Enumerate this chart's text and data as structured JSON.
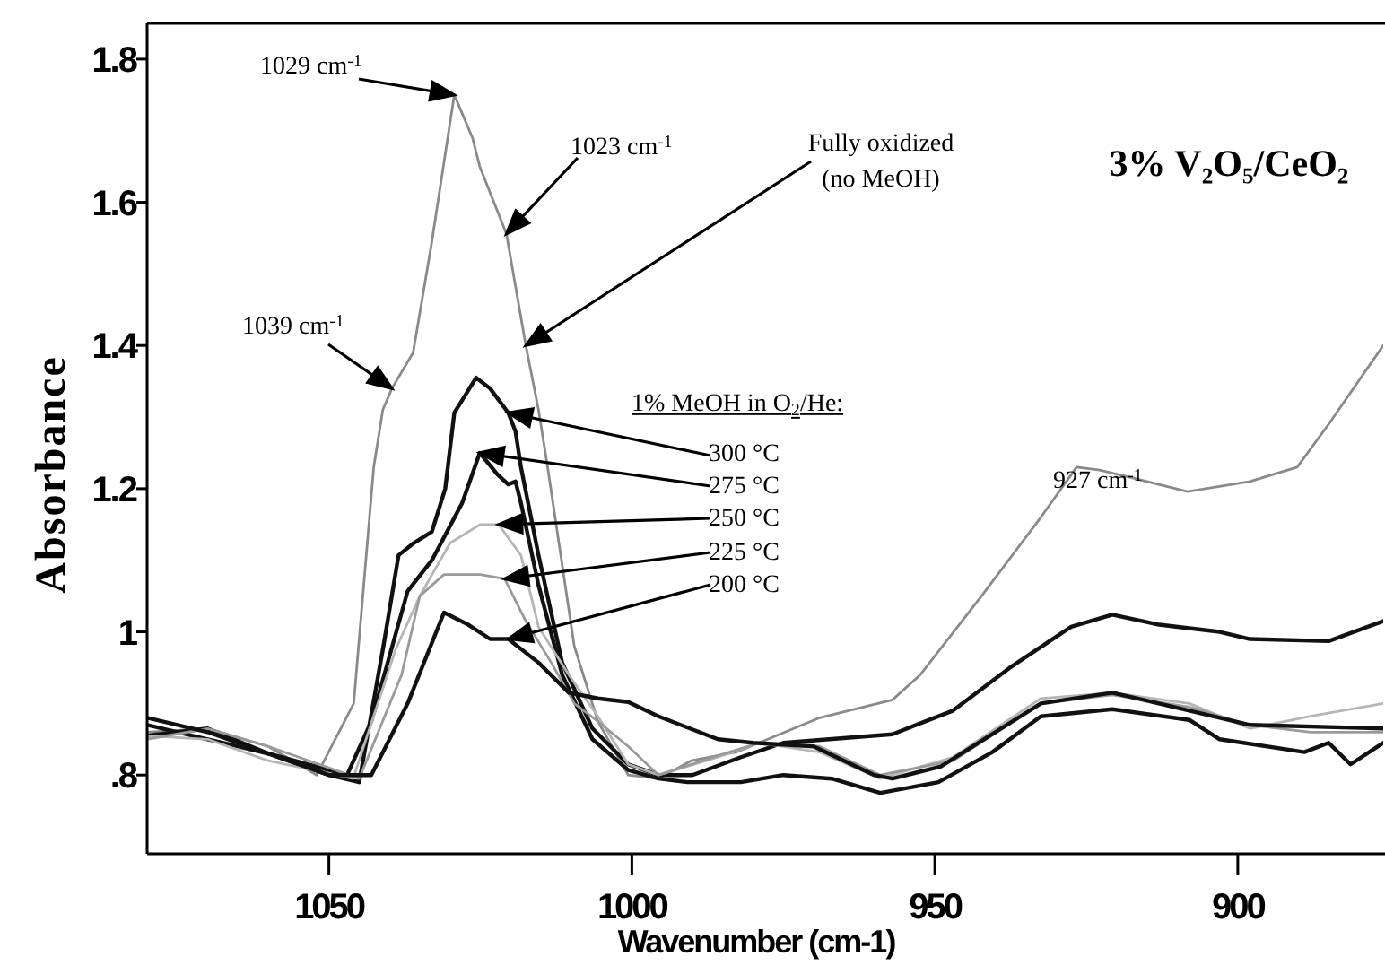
{
  "chart_data": {
    "type": "line",
    "title": "3% V₂O₅/CeO₂",
    "xlabel": "Wavenumber (cm-1)",
    "ylabel": "Absorbance",
    "xlim": [
      1080,
      876
    ],
    "xticks": [
      1050,
      1000,
      950,
      900
    ],
    "ylim": [
      0.69,
      1.85
    ],
    "yticks": [
      {
        "value": 0.8,
        "label": ".8"
      },
      1,
      1.2,
      1.4,
      1.6,
      1.8
    ],
    "grid": false,
    "marker": "none",
    "line_style": "solid",
    "series": [
      {
        "color": "#8a8a8a",
        "x": [
          1080,
          1070,
          1060,
          1052,
          1045.9,
          1042.6,
          1041.1,
          1039.6,
          1036.1,
          1033.1,
          1029.3,
          1026.3,
          1025.1,
          1020.7,
          1017.5,
          1015.4,
          1013.9,
          1009.5,
          1005.6,
          1000.6,
          995.6,
          990.2,
          982.8,
          979,
          969,
          957,
          952.4,
          942.3,
          932.5,
          926.6,
          922.8,
          916.9,
          908.3,
          898,
          890.2,
          885,
          876
        ],
        "values": [
          0.86,
          0.865,
          0.84,
          0.8,
          0.9,
          1.23,
          1.31,
          1.34,
          1.39,
          1.54,
          1.75,
          1.69,
          1.65,
          1.556,
          1.4,
          1.31,
          1.23,
          0.98,
          0.875,
          0.8,
          0.795,
          0.82,
          0.832,
          0.845,
          0.88,
          0.905,
          0.94,
          1.05,
          1.16,
          1.23,
          1.226,
          1.214,
          1.196,
          1.21,
          1.23,
          1.29,
          1.4
        ]
      },
      {
        "color": "#111111",
        "x": [
          1080,
          1070,
          1060,
          1050,
          1045,
          1041,
          1038.5,
          1036,
          1033,
          1030.8,
          1029.3,
          1025.7,
          1023.4,
          1020.4,
          1019.2,
          1018.3,
          1015.4,
          1011.5,
          1006.5,
          1000.6,
          995.6,
          990,
          982,
          975,
          957,
          947,
          937.6,
          927.5,
          920.7,
          913,
          903,
          898,
          885,
          876
        ],
        "values": [
          0.87,
          0.85,
          0.83,
          0.8,
          0.79,
          0.98,
          1.107,
          1.124,
          1.14,
          1.2,
          1.306,
          1.355,
          1.34,
          1.306,
          1.28,
          1.23,
          1.107,
          0.957,
          0.865,
          0.815,
          0.8,
          0.8,
          0.825,
          0.845,
          0.857,
          0.89,
          0.95,
          1.007,
          1.024,
          1.01,
          1.0,
          0.99,
          0.987,
          1.015
        ]
      },
      {
        "color": "#111111",
        "x": [
          1080,
          1070,
          1060,
          1047,
          1043,
          1037,
          1033,
          1028,
          1025.1,
          1022.2,
          1020.4,
          1019.2,
          1018.3,
          1015.4,
          1011.5,
          1006.5,
          1000.6,
          995.6,
          990.8,
          982,
          975,
          967,
          959,
          949.4,
          940.5,
          932.5,
          920.7,
          908,
          903,
          889,
          885,
          881.4,
          876
        ],
        "values": [
          0.855,
          0.865,
          0.83,
          0.8,
          0.875,
          1.057,
          1.1,
          1.18,
          1.25,
          1.22,
          1.206,
          1.21,
          1.18,
          1.065,
          0.94,
          0.85,
          0.807,
          0.795,
          0.79,
          0.79,
          0.8,
          0.795,
          0.775,
          0.79,
          0.832,
          0.882,
          0.892,
          0.877,
          0.85,
          0.832,
          0.845,
          0.815,
          0.845
        ]
      },
      {
        "color": "#b5b5b5",
        "x": [
          1080,
          1070,
          1060,
          1046,
          1039,
          1035,
          1030,
          1025,
          1022,
          1018.3,
          1015.4,
          1010.4,
          1005.6,
          1000.6,
          995.6,
          985.8,
          979,
          969,
          959,
          947,
          932.5,
          920.7,
          908,
          898,
          888,
          876
        ],
        "values": [
          0.855,
          0.85,
          0.82,
          0.795,
          0.975,
          1.05,
          1.124,
          1.15,
          1.15,
          1.107,
          1.007,
          0.94,
          0.882,
          0.815,
          0.8,
          0.825,
          0.845,
          0.832,
          0.795,
          0.825,
          0.907,
          0.915,
          0.9,
          0.865,
          0.882,
          0.9
        ]
      },
      {
        "color": "#9a9a9a",
        "x": [
          1080,
          1070,
          1060,
          1045,
          1038,
          1035,
          1031,
          1025,
          1021,
          1017.5,
          1013.3,
          1009.5,
          1005.6,
          1000.6,
          995.6,
          985.8,
          979,
          969,
          959,
          947,
          932.5,
          920.7,
          908,
          898,
          888,
          876
        ],
        "values": [
          0.85,
          0.865,
          0.84,
          0.795,
          0.94,
          1.05,
          1.08,
          1.08,
          1.074,
          1.015,
          0.957,
          0.9,
          0.875,
          0.84,
          0.8,
          0.827,
          0.845,
          0.84,
          0.8,
          0.82,
          0.9,
          0.912,
          0.895,
          0.87,
          0.86,
          0.86
        ]
      },
      {
        "color": "#111111",
        "x": [
          1080,
          1070,
          1060,
          1050,
          1043,
          1037,
          1031,
          1027,
          1023.4,
          1020.4,
          1015.4,
          1010.4,
          1005.6,
          1000.6,
          995.6,
          985.8,
          980,
          970,
          960,
          957,
          949,
          932.5,
          920.7,
          908,
          898,
          876
        ],
        "values": [
          0.88,
          0.86,
          0.83,
          0.8,
          0.8,
          0.9,
          1.027,
          1.01,
          0.99,
          0.99,
          0.957,
          0.915,
          0.907,
          0.902,
          0.882,
          0.85,
          0.845,
          0.84,
          0.8,
          0.795,
          0.812,
          0.9,
          0.915,
          0.89,
          0.87,
          0.865
        ]
      }
    ],
    "annotations": [
      {
        "text": "1029 cm$^{-1}$",
        "x": 1029.3,
        "y": 1.75
      },
      {
        "text": "1023 cm$^{-1}$",
        "x": 1020.7,
        "y": 1.556
      },
      {
        "text": "1039 cm$^{-1}$",
        "x": 1039.6,
        "y": 1.34
      },
      {
        "text": "Fully oxidized (no MeOH)",
        "x": 1017.5,
        "y": 1.4
      },
      "1% MeOH in O$_{2}$/He:",
      {
        "text": "300 °C",
        "x": 1020.4,
        "y": 1.306
      },
      {
        "text": "275 °C",
        "x": 1025.1,
        "y": 1.25
      },
      {
        "text": "250 °C",
        "x": 1022,
        "y": 1.15
      },
      {
        "text": "225 °C",
        "x": 1021,
        "y": 1.074
      },
      {
        "text": "200 °C",
        "x": 1020.4,
        "y": 0.99
      },
      "927 cm$^{-1}$"
    ]
  }
}
